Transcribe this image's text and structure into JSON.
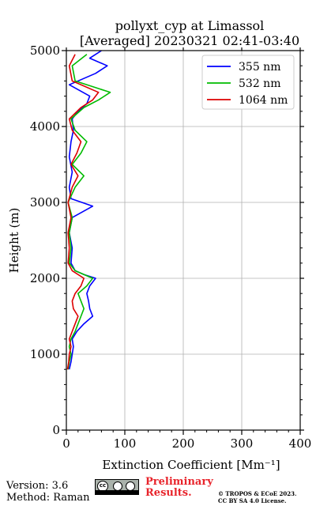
{
  "chart_data": {
    "type": "line",
    "title_line1": "pollyxt_cyp at Limassol",
    "title_line2": "[Averaged] 20230321 02:41-03:40",
    "xlabel": "Extinction Coefficient [Mm⁻¹]",
    "ylabel": "Height (m)",
    "xlim": [
      0,
      400
    ],
    "ylim": [
      0,
      5000
    ],
    "x_ticks": [
      0,
      100,
      200,
      300,
      400
    ],
    "y_ticks": [
      0,
      1000,
      2000,
      3000,
      4000,
      5000
    ],
    "grid": true,
    "legend_position": "top-right",
    "series": [
      {
        "name": "355 nm",
        "color": "#0000ff",
        "points": [
          [
            5,
            800
          ],
          [
            8,
            900
          ],
          [
            10,
            1000
          ],
          [
            12,
            1100
          ],
          [
            10,
            1200
          ],
          [
            18,
            1300
          ],
          [
            30,
            1400
          ],
          [
            45,
            1500
          ],
          [
            40,
            1600
          ],
          [
            38,
            1700
          ],
          [
            35,
            1800
          ],
          [
            40,
            1900
          ],
          [
            50,
            2000
          ],
          [
            30,
            2050
          ],
          [
            15,
            2100
          ],
          [
            8,
            2200
          ],
          [
            10,
            2400
          ],
          [
            5,
            2600
          ],
          [
            10,
            2800
          ],
          [
            45,
            2950
          ],
          [
            8,
            3050
          ],
          [
            5,
            3200
          ],
          [
            10,
            3400
          ],
          [
            5,
            3600
          ],
          [
            8,
            3800
          ],
          [
            12,
            3950
          ],
          [
            10,
            4100
          ],
          [
            20,
            4200
          ],
          [
            35,
            4300
          ],
          [
            40,
            4400
          ],
          [
            5,
            4550
          ],
          [
            50,
            4700
          ],
          [
            70,
            4800
          ],
          [
            40,
            4900
          ],
          [
            60,
            5000
          ]
        ]
      },
      {
        "name": "532 nm",
        "color": "#00bb00",
        "points": [
          [
            3,
            800
          ],
          [
            5,
            900
          ],
          [
            8,
            1000
          ],
          [
            5,
            1100
          ],
          [
            8,
            1200
          ],
          [
            15,
            1300
          ],
          [
            20,
            1400
          ],
          [
            25,
            1500
          ],
          [
            30,
            1600
          ],
          [
            25,
            1700
          ],
          [
            20,
            1800
          ],
          [
            35,
            1900
          ],
          [
            45,
            2000
          ],
          [
            15,
            2100
          ],
          [
            5,
            2200
          ],
          [
            8,
            2400
          ],
          [
            5,
            2600
          ],
          [
            10,
            2800
          ],
          [
            3,
            3000
          ],
          [
            15,
            3200
          ],
          [
            30,
            3350
          ],
          [
            10,
            3500
          ],
          [
            25,
            3650
          ],
          [
            35,
            3800
          ],
          [
            15,
            3950
          ],
          [
            8,
            4100
          ],
          [
            30,
            4250
          ],
          [
            55,
            4350
          ],
          [
            75,
            4450
          ],
          [
            15,
            4600
          ],
          [
            10,
            4800
          ],
          [
            35,
            4950
          ]
        ]
      },
      {
        "name": "1064 nm",
        "color": "#dd0000",
        "points": [
          [
            2,
            800
          ],
          [
            4,
            900
          ],
          [
            5,
            1000
          ],
          [
            8,
            1100
          ],
          [
            5,
            1200
          ],
          [
            10,
            1300
          ],
          [
            15,
            1400
          ],
          [
            20,
            1500
          ],
          [
            12,
            1600
          ],
          [
            10,
            1700
          ],
          [
            15,
            1800
          ],
          [
            25,
            1900
          ],
          [
            30,
            2000
          ],
          [
            10,
            2100
          ],
          [
            3,
            2200
          ],
          [
            5,
            2400
          ],
          [
            3,
            2600
          ],
          [
            8,
            2800
          ],
          [
            3,
            3000
          ],
          [
            10,
            3200
          ],
          [
            20,
            3350
          ],
          [
            8,
            3500
          ],
          [
            18,
            3650
          ],
          [
            25,
            3800
          ],
          [
            10,
            3950
          ],
          [
            5,
            4100
          ],
          [
            25,
            4250
          ],
          [
            45,
            4350
          ],
          [
            55,
            4450
          ],
          [
            10,
            4600
          ],
          [
            5,
            4800
          ],
          [
            15,
            4950
          ]
        ]
      }
    ]
  },
  "footer": {
    "version": "Version: 3.6",
    "method": "Method: Raman",
    "preliminary_line1": "Preliminary",
    "preliminary_line2": "Results.",
    "copyright_line1": "© TROPOS & ECoE 2023.",
    "copyright_line2": "CC BY SA 4.0 License.",
    "license_badge": {
      "cc": "cc",
      "icons": [
        "by-icon",
        "sa-icon"
      ]
    }
  }
}
